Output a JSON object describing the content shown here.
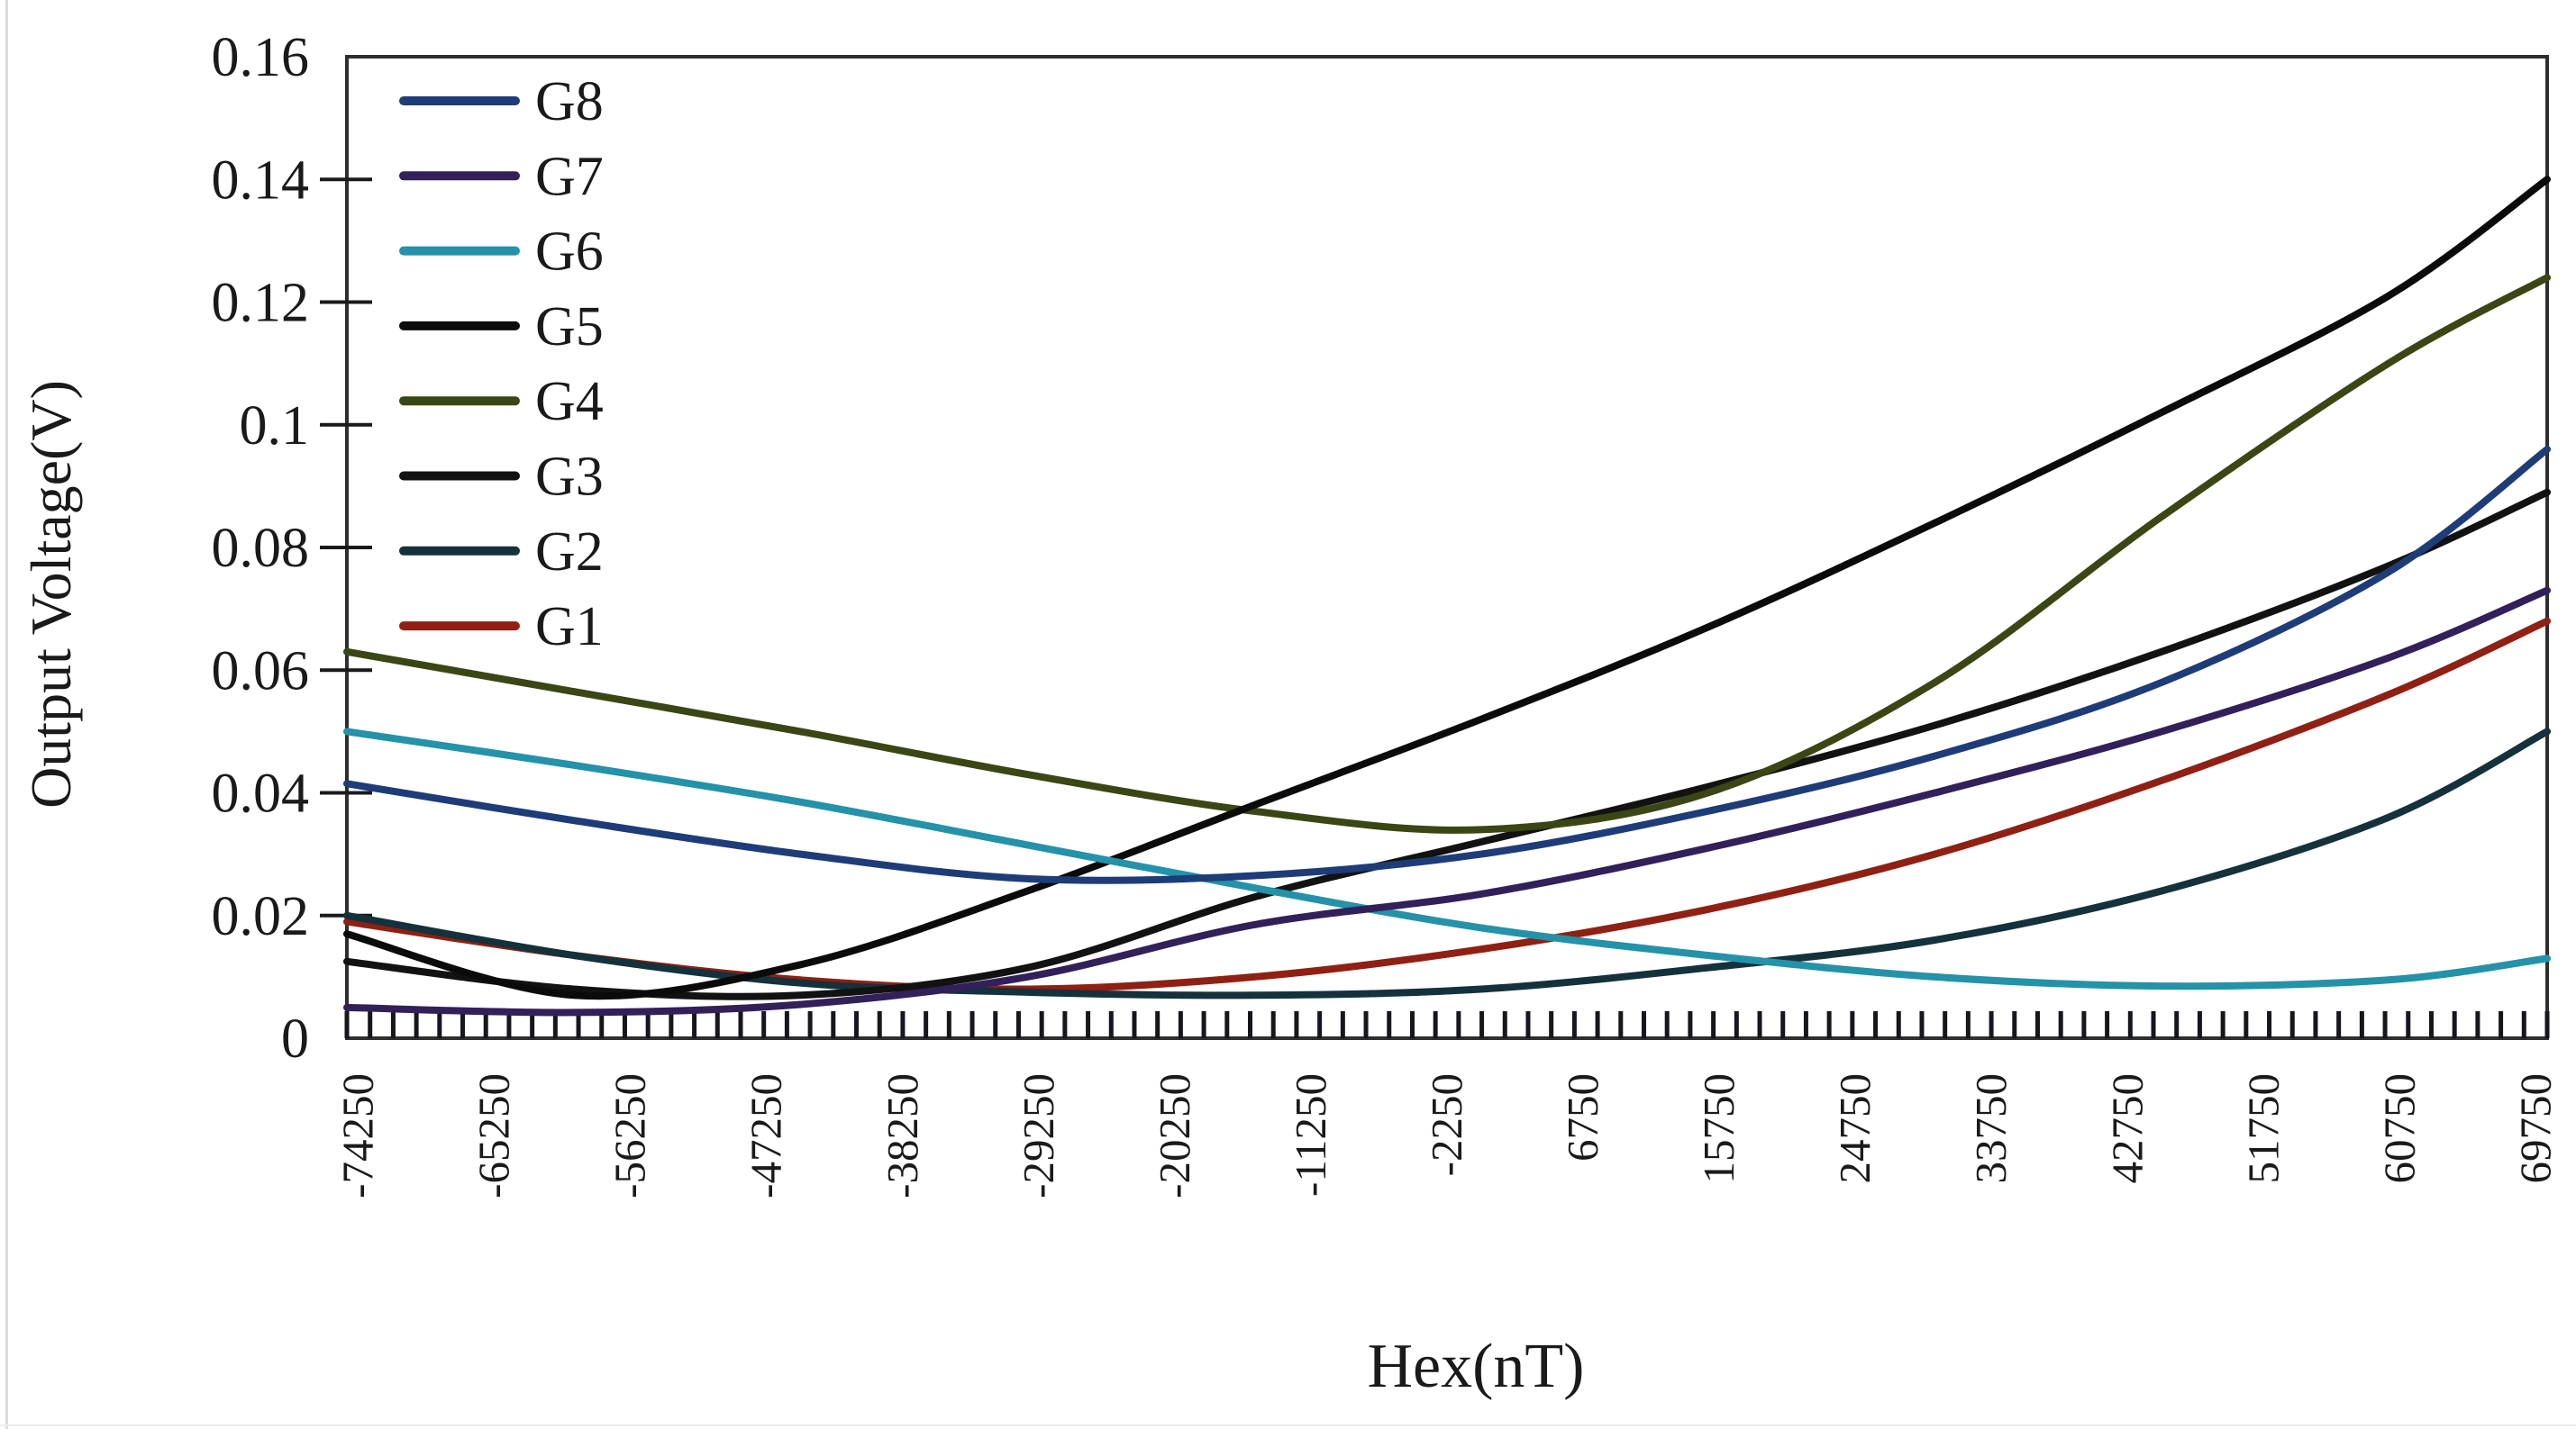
{
  "figure": {
    "background": "#ffffff",
    "frame_color": "#2e2e2e",
    "text_color": "#1a1a1a"
  },
  "chart_data": {
    "type": "line",
    "title": "",
    "xlabel": "Hex(nT)",
    "ylabel": "Output Voltage(V)",
    "x_unit": "nT",
    "y_unit": "V",
    "xlim": [
      -75000,
      70500
    ],
    "ylim": [
      0,
      0.16
    ],
    "grid": false,
    "legend_position": "top-left",
    "x_tick_labels": [
      "-74250",
      "-65250",
      "-56250",
      "-47250",
      "-38250",
      "-29250",
      "-20250",
      "-11250",
      "-2250",
      "6750",
      "15750",
      "24750",
      "33750",
      "42750",
      "51750",
      "60750",
      "69750"
    ],
    "x_tick_values": [
      -74250,
      -65250,
      -56250,
      -47250,
      -38250,
      -29250,
      -20250,
      -11250,
      -2250,
      6750,
      15750,
      24750,
      33750,
      42750,
      51750,
      60750,
      69750
    ],
    "y_tick_labels": [
      "0.16",
      "0.14",
      "0.12",
      "0.1",
      "0.08",
      "0.06",
      "0.04",
      "0.02",
      "0"
    ],
    "y_tick_values": [
      0.16,
      0.14,
      0.12,
      0.1,
      0.08,
      0.06,
      0.04,
      0.02,
      0
    ],
    "minor_x_tick_step": 1500,
    "sample_x": [
      -75000,
      -60000,
      -45000,
      -30000,
      -15000,
      0,
      15000,
      30000,
      45000,
      60000,
      70500
    ],
    "series": [
      {
        "name": "G8",
        "color": "#1e3c78",
        "values": [
          0.0415,
          0.0355,
          0.03,
          0.026,
          0.0265,
          0.03,
          0.037,
          0.046,
          0.058,
          0.076,
          0.096
        ]
      },
      {
        "name": "G7",
        "color": "#32205a",
        "values": [
          0.005,
          0.0042,
          0.0055,
          0.01,
          0.0185,
          0.0235,
          0.031,
          0.04,
          0.05,
          0.062,
          0.073
        ]
      },
      {
        "name": "G6",
        "color": "#2492a8",
        "values": [
          0.05,
          0.0445,
          0.0385,
          0.0315,
          0.0245,
          0.018,
          0.0135,
          0.01,
          0.0085,
          0.0095,
          0.013
        ]
      },
      {
        "name": "G5",
        "color": "#0b0b0b",
        "values": [
          0.017,
          0.007,
          0.012,
          0.024,
          0.038,
          0.052,
          0.067,
          0.084,
          0.102,
          0.121,
          0.14
        ]
      },
      {
        "name": "G4",
        "color": "#3a4614",
        "values": [
          0.063,
          0.0565,
          0.05,
          0.043,
          0.037,
          0.034,
          0.04,
          0.058,
          0.085,
          0.11,
          0.124
        ]
      },
      {
        "name": "G3",
        "color": "#121212",
        "values": [
          0.0125,
          0.008,
          0.007,
          0.0115,
          0.023,
          0.032,
          0.041,
          0.051,
          0.063,
          0.077,
          0.089
        ]
      },
      {
        "name": "G2",
        "color": "#14313c",
        "values": [
          0.02,
          0.0135,
          0.009,
          0.0075,
          0.007,
          0.008,
          0.0115,
          0.016,
          0.024,
          0.036,
          0.05
        ]
      },
      {
        "name": "G1",
        "color": "#8f2013",
        "values": [
          0.019,
          0.0135,
          0.0095,
          0.008,
          0.01,
          0.0145,
          0.021,
          0.03,
          0.042,
          0.056,
          0.068
        ]
      }
    ]
  }
}
